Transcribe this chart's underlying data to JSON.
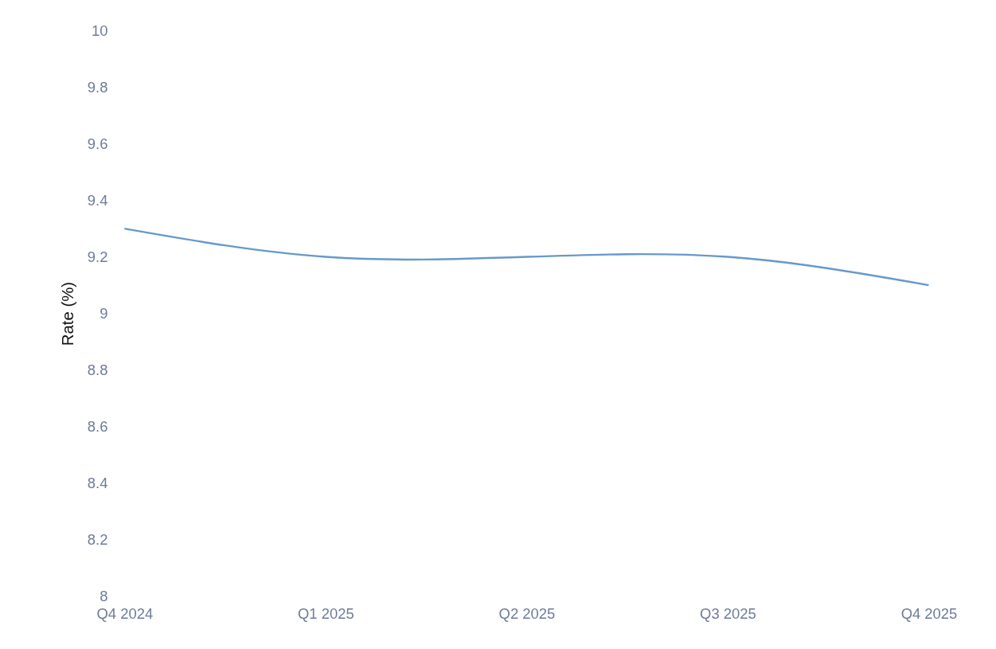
{
  "chart_data": {
    "type": "line",
    "ylabel": "Rate (%)",
    "categories": [
      "Q4 2024",
      "Q1 2025",
      "Q2 2025",
      "Q3 2025",
      "Q4 2025"
    ],
    "series": [
      {
        "color": "#6699cc",
        "values": [
          9.3,
          9.2,
          9.2,
          9.2,
          9.1
        ]
      }
    ],
    "ylim": [
      8,
      10
    ],
    "yticks": [
      8,
      8.2,
      8.4,
      8.6,
      8.8,
      9,
      9.2,
      9.4,
      9.6,
      9.8,
      10
    ],
    "grid": false,
    "legend": false,
    "marker": "none",
    "line_style": "solid"
  }
}
